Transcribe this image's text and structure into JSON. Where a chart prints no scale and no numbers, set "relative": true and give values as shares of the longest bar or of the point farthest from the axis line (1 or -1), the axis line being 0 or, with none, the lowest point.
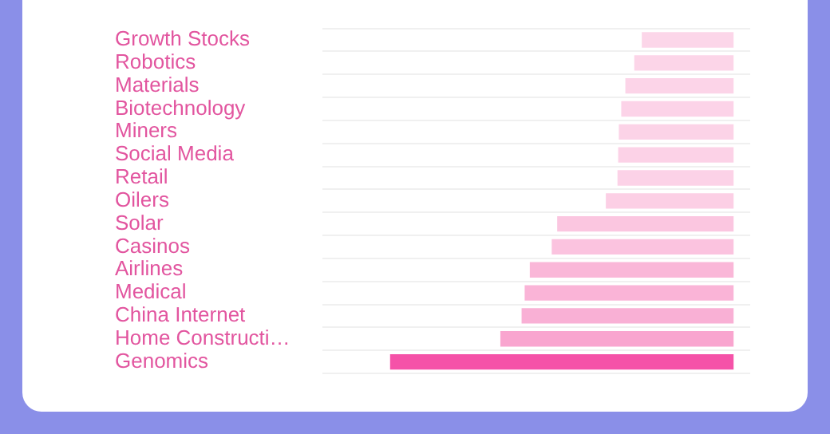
{
  "chart_data": {
    "type": "bar",
    "orientation": "horizontal",
    "relative": true,
    "grid": "y",
    "legend": false,
    "categories": [
      "Growth Stocks",
      "Robotics",
      "Materials",
      "Biotechnology",
      "Miners",
      "Social Media",
      "Retail",
      "Oilers",
      "Solar",
      "Casinos",
      "Airlines",
      "Medical",
      "China Internet",
      "Home Constructi…",
      "Genomics"
    ],
    "values": [
      -0.265,
      -0.287,
      -0.313,
      -0.325,
      -0.332,
      -0.334,
      -0.336,
      -0.37,
      -0.512,
      -0.528,
      -0.592,
      -0.607,
      -0.616,
      -0.678,
      -1
    ],
    "colors": [
      "#fcd6e9",
      "#fcd5e8",
      "#fcd4e8",
      "#fcd3e8",
      "#fcd3e7",
      "#fcd2e7",
      "#fcd2e7",
      "#fccfe5",
      "#fbc6e0",
      "#fbc3df",
      "#fab7d8",
      "#fab4d7",
      "#f9b0d5",
      "#f9a5cf",
      "#f552a8"
    ],
    "tick_labels": "y"
  }
}
